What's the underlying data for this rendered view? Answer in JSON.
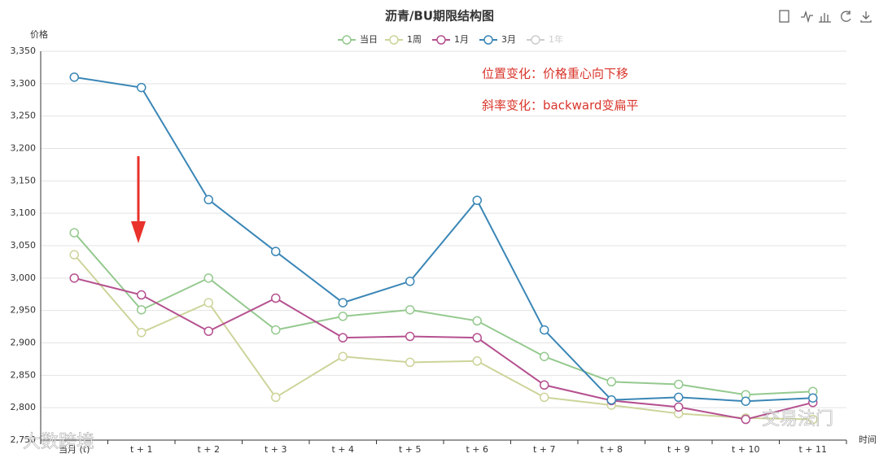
{
  "chart_data": {
    "type": "line",
    "title": "沥青/BU期限结构图",
    "y_label": "价格",
    "x_label": "时间",
    "categories": [
      "当月 (t)",
      "t + 1",
      "t + 2",
      "t + 3",
      "t + 4",
      "t + 5",
      "t + 6",
      "t + 7",
      "t + 8",
      "t + 9",
      "t + 10",
      "t + 11"
    ],
    "series": [
      {
        "name": "当日",
        "color": "#95c98f",
        "values": [
          3070,
          2951,
          3000,
          2920,
          2941,
          2951,
          2934,
          2879,
          2840,
          2836,
          2820,
          2825
        ]
      },
      {
        "name": "1周",
        "color": "#cdd49a",
        "values": [
          3036,
          2916,
          2962,
          2816,
          2879,
          2870,
          2872,
          2816,
          2804,
          2791,
          2784,
          2782
        ]
      },
      {
        "name": "1月",
        "color": "#b5508f",
        "values": [
          3000,
          2974,
          2918,
          2969,
          2908,
          2910,
          2908,
          2835,
          2811,
          2801,
          2782,
          2808
        ]
      },
      {
        "name": "3月",
        "color": "#3a86b6",
        "values": [
          3310,
          3294,
          3121,
          3041,
          2962,
          2995,
          3120,
          2920,
          2812,
          2816,
          2810,
          2815
        ]
      },
      {
        "name": "1年",
        "color": "#cccccc",
        "hidden": true,
        "values": [
          null,
          null,
          null,
          null,
          null,
          null,
          null,
          null,
          null,
          null,
          null,
          null
        ]
      }
    ],
    "ylim": [
      2750,
      3350
    ],
    "yticks": [
      {
        "value": 2750,
        "label": "2,750"
      },
      {
        "value": 2800,
        "label": "2,800"
      },
      {
        "value": 2850,
        "label": "2,850"
      },
      {
        "value": 2900,
        "label": "2,900"
      },
      {
        "value": 2950,
        "label": "2,950"
      },
      {
        "value": 3000,
        "label": "3,000"
      },
      {
        "value": 3050,
        "label": "3,050"
      },
      {
        "value": 3100,
        "label": "3,100"
      },
      {
        "value": 3150,
        "label": "3,150"
      },
      {
        "value": 3200,
        "label": "3,200"
      },
      {
        "value": 3250,
        "label": "3,250"
      },
      {
        "value": 3300,
        "label": "3,300"
      },
      {
        "value": 3350,
        "label": "3,350"
      }
    ],
    "grid": true,
    "legend": "top",
    "annotations": [
      "位置变化：价格重心向下移",
      "斜率变化：backward变扁平"
    ],
    "watermarks": [
      "大数跨境",
      "交易法门"
    ]
  }
}
